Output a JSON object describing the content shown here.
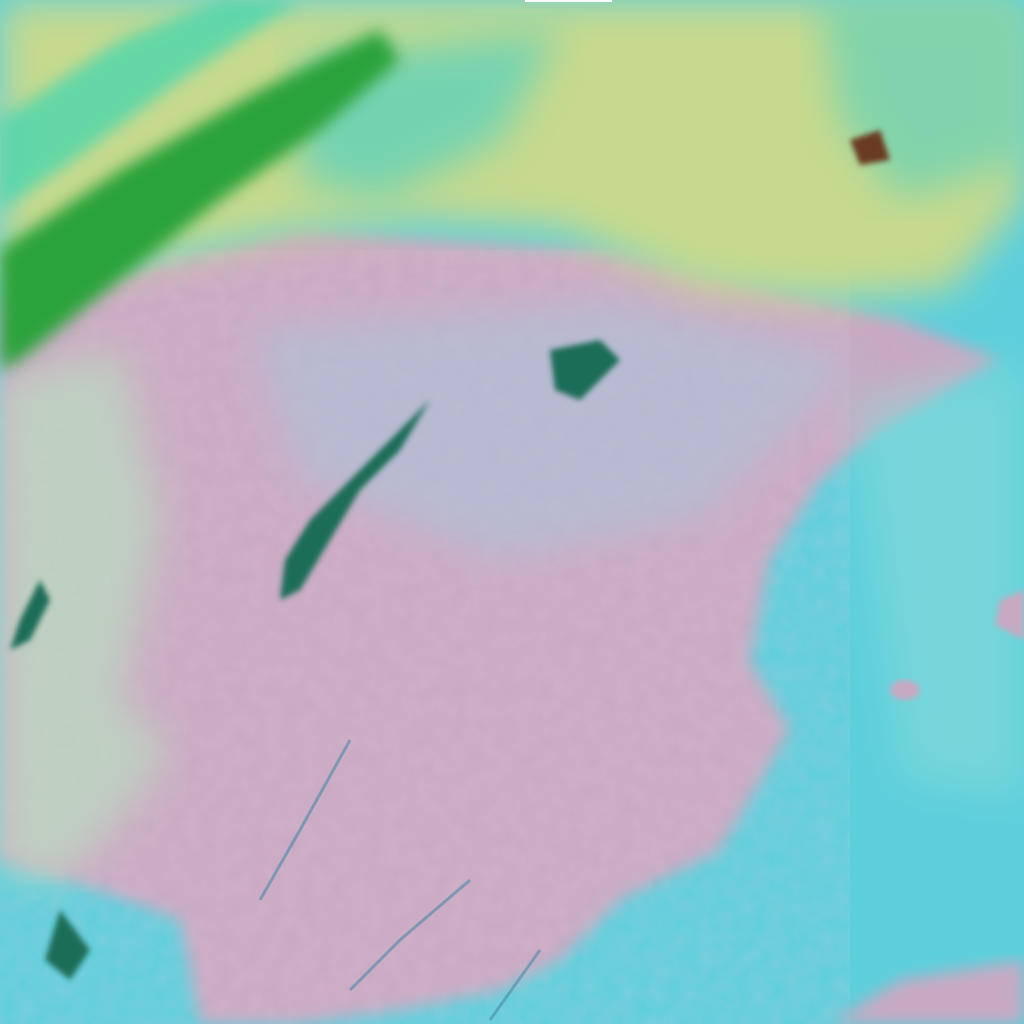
{
  "image": {
    "kind": "false-color satellite imagery",
    "colors": {
      "sea": "#5ccfdc",
      "land": "#c9a8c0",
      "land_pink": "#d9a3b5",
      "haze": "#b8d0d8",
      "cloud_yellow": "#c9d98a",
      "cloud_green": "#2fa03a",
      "cloud_cyan": "#3fd0b8",
      "dark_patch": "#1e6a5a"
    }
  }
}
